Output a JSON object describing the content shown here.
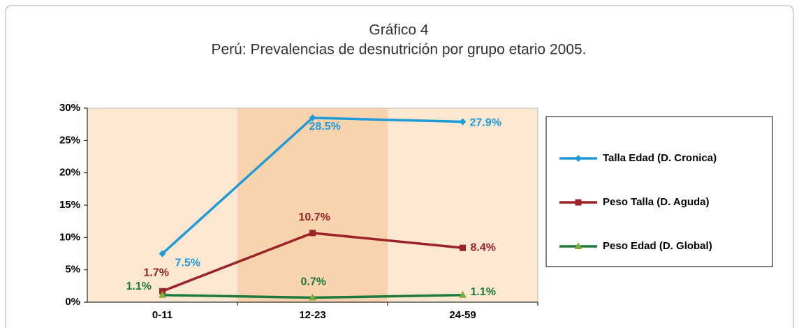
{
  "chart_data": {
    "type": "line",
    "title": "Gráfico 4",
    "subtitle": "Perú: Prevalencias de desnutrición por grupo etario 2005.",
    "categories": [
      "0-11",
      "12-23",
      "24-59"
    ],
    "series": [
      {
        "name": "Talla Edad (D. Cronica)",
        "color": "#1f9bd7",
        "marker": "diamond",
        "values": [
          7.5,
          28.5,
          27.9
        ],
        "value_labels": [
          "7.5%",
          "28.5%",
          "27.9%"
        ]
      },
      {
        "name": "Peso Talla (D. Aguda)",
        "color": "#9b2226",
        "marker": "square",
        "values": [
          1.7,
          10.7,
          8.4
        ],
        "value_labels": [
          "1.7%",
          "10.7%",
          "8.4%"
        ]
      },
      {
        "name": "Peso Edad (D. Global)",
        "color": "#1e7a3a",
        "marker": "triangle",
        "values": [
          1.1,
          0.7,
          1.1
        ],
        "value_labels": [
          "1.1%",
          "0.7%",
          "1.1%"
        ]
      }
    ],
    "ylim": [
      0,
      30
    ],
    "yticks": [
      {
        "value": 0,
        "label": "0%"
      },
      {
        "value": 5,
        "label": "5%"
      },
      {
        "value": 10,
        "label": "10%"
      },
      {
        "value": 15,
        "label": "15%"
      },
      {
        "value": 20,
        "label": "20%"
      },
      {
        "value": 25,
        "label": "25%"
      },
      {
        "value": 30,
        "label": "30%"
      }
    ],
    "legend": "right"
  }
}
